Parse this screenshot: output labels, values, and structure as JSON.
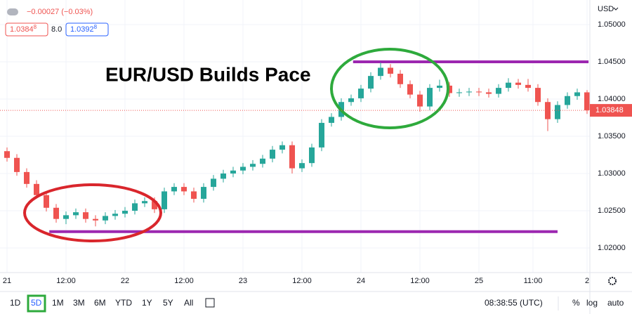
{
  "chart_data": {
    "type": "candlestick",
    "title": "EUR/USD Builds Pace",
    "currency": "USD",
    "xlim": [
      -1.43,
      118.57
    ],
    "ylim": [
      1.0167,
      1.0533
    ],
    "xticks": [
      {
        "value": 0,
        "label": "21"
      },
      {
        "value": 12,
        "label": "12:00"
      },
      {
        "value": 24,
        "label": "22"
      },
      {
        "value": 36,
        "label": "12:00"
      },
      {
        "value": 48,
        "label": "23"
      },
      {
        "value": 60,
        "label": "12:00"
      },
      {
        "value": 72,
        "label": "24"
      },
      {
        "value": 84,
        "label": "12:00"
      },
      {
        "value": 96,
        "label": "25"
      },
      {
        "value": 107,
        "label": "11:00"
      },
      {
        "value": 118,
        "label": "2"
      }
    ],
    "yticks": [
      {
        "value": 1.05,
        "label": "1.05000"
      },
      {
        "value": 1.045,
        "label": "1.04500"
      },
      {
        "value": 1.04,
        "label": "1.04000"
      },
      {
        "value": 1.035,
        "label": "1.03500"
      },
      {
        "value": 1.03,
        "label": "1.03000"
      },
      {
        "value": 1.025,
        "label": "1.02500"
      },
      {
        "value": 1.02,
        "label": "1.02000"
      }
    ],
    "grid": true,
    "up_color": "#26a69a",
    "down_color": "#ef5350",
    "last_price": 1.03848,
    "series": [
      {
        "x": [
          0,
          2,
          4,
          6,
          8,
          10,
          12,
          14,
          16,
          18,
          20,
          22,
          24,
          26,
          28,
          30,
          32,
          34,
          36,
          38,
          40,
          42,
          44,
          46,
          48,
          50,
          52,
          54,
          56,
          58,
          60,
          62,
          64,
          66,
          68,
          70,
          72,
          74,
          76,
          78,
          80,
          82,
          84,
          86,
          88,
          90,
          92,
          94,
          96,
          98,
          100,
          102,
          104,
          106,
          108,
          110,
          112,
          114,
          116,
          118
        ],
        "ohlc": [
          [
            1.033,
            1.0335,
            1.0316,
            1.0321
          ],
          [
            1.0321,
            1.0326,
            1.0297,
            1.0302
          ],
          [
            1.0302,
            1.0307,
            1.0281,
            1.0286
          ],
          [
            1.0286,
            1.0291,
            1.0266,
            1.0271
          ],
          [
            1.0271,
            1.0276,
            1.0249,
            1.0254
          ],
          [
            1.0254,
            1.0259,
            1.0234,
            1.0239
          ],
          [
            1.0239,
            1.0249,
            1.0232,
            1.0244
          ],
          [
            1.0244,
            1.0253,
            1.0239,
            1.0248
          ],
          [
            1.0248,
            1.0253,
            1.0234,
            1.0239
          ],
          [
            1.0239,
            1.0244,
            1.0229,
            1.0237
          ],
          [
            1.0237,
            1.0248,
            1.0232,
            1.0243
          ],
          [
            1.0243,
            1.0251,
            1.0238,
            1.0246
          ],
          [
            1.0246,
            1.0255,
            1.0241,
            1.025
          ],
          [
            1.025,
            1.0265,
            1.0245,
            1.026
          ],
          [
            1.026,
            1.0268,
            1.0255,
            1.0263
          ],
          [
            1.0263,
            1.0268,
            1.0247,
            1.0252
          ],
          [
            1.0252,
            1.0281,
            1.0247,
            1.0276
          ],
          [
            1.0276,
            1.0287,
            1.0271,
            1.0282
          ],
          [
            1.0282,
            1.0287,
            1.0271,
            1.0276
          ],
          [
            1.0276,
            1.0281,
            1.0261,
            1.0266
          ],
          [
            1.0266,
            1.0287,
            1.0261,
            1.0282
          ],
          [
            1.0282,
            1.0298,
            1.0277,
            1.0293
          ],
          [
            1.0293,
            1.0305,
            1.0288,
            1.03
          ],
          [
            1.03,
            1.0309,
            1.0295,
            1.0304
          ],
          [
            1.0304,
            1.0314,
            1.0299,
            1.0309
          ],
          [
            1.0309,
            1.0318,
            1.0304,
            1.0313
          ],
          [
            1.0313,
            1.0325,
            1.0308,
            1.032
          ],
          [
            1.032,
            1.0337,
            1.0315,
            1.0332
          ],
          [
            1.0332,
            1.0343,
            1.0327,
            1.0338
          ],
          [
            1.0338,
            1.0343,
            1.03,
            1.0307
          ],
          [
            1.0307,
            1.0319,
            1.0302,
            1.0314
          ],
          [
            1.0314,
            1.034,
            1.0309,
            1.0335
          ],
          [
            1.0335,
            1.0373,
            1.033,
            1.0368
          ],
          [
            1.0368,
            1.0381,
            1.0363,
            1.0376
          ],
          [
            1.0376,
            1.0401,
            1.0371,
            1.0396
          ],
          [
            1.0396,
            1.0406,
            1.0391,
            1.0401
          ],
          [
            1.0401,
            1.0419,
            1.0396,
            1.0414
          ],
          [
            1.0414,
            1.0436,
            1.0409,
            1.0431
          ],
          [
            1.0431,
            1.0449,
            1.0426,
            1.0442
          ],
          [
            1.0442,
            1.0447,
            1.0429,
            1.0434
          ],
          [
            1.0434,
            1.0439,
            1.0415,
            1.042
          ],
          [
            1.042,
            1.0425,
            1.0401,
            1.0406
          ],
          [
            1.0406,
            1.0411,
            1.0383,
            1.039
          ],
          [
            1.039,
            1.042,
            1.0385,
            1.0415
          ],
          [
            1.0415,
            1.0426,
            1.041,
            1.0418
          ],
          [
            1.0418,
            1.0423,
            1.0403,
            1.0408
          ],
          [
            1.0408,
            1.0414,
            1.0403,
            1.0409
          ],
          [
            1.0409,
            1.0415,
            1.0404,
            1.041
          ],
          [
            1.041,
            1.0415,
            1.0404,
            1.0409
          ],
          [
            1.0409,
            1.0414,
            1.0402,
            1.0407
          ],
          [
            1.0407,
            1.042,
            1.0402,
            1.0415
          ],
          [
            1.0415,
            1.0428,
            1.041,
            1.0422
          ],
          [
            1.0422,
            1.0427,
            1.0414,
            1.0419
          ],
          [
            1.0419,
            1.0427,
            1.041,
            1.0415
          ],
          [
            1.0415,
            1.042,
            1.0391,
            1.0396
          ],
          [
            1.0396,
            1.0401,
            1.0357,
            1.0373
          ],
          [
            1.0373,
            1.0397,
            1.0368,
            1.0392
          ],
          [
            1.0392,
            1.0409,
            1.0387,
            1.0404
          ],
          [
            1.0404,
            1.0414,
            1.0399,
            1.0409
          ],
          [
            1.0409,
            1.0412,
            1.038,
            1.0385
          ]
        ]
      }
    ],
    "levels": [
      {
        "value": 1.045,
        "from": 70.4,
        "to": 118.3,
        "color": "#9c27b0"
      },
      {
        "value": 1.0222,
        "from": 8.6,
        "to": 112,
        "color": "#9c27b0"
      }
    ]
  },
  "ui": {
    "change": "−0.00027 (−0.03%)",
    "bid": "1.0384",
    "bid_sub": "8",
    "spread": "8.0",
    "ask": "1.0392",
    "ask_sub": "8",
    "ranges": [
      "1D",
      "5D",
      "1M",
      "3M",
      "6M",
      "YTD",
      "1Y",
      "5Y",
      "All"
    ],
    "active_range": 1,
    "time": "08:38:55 (UTC)",
    "options": [
      "%",
      "log",
      "auto"
    ]
  }
}
